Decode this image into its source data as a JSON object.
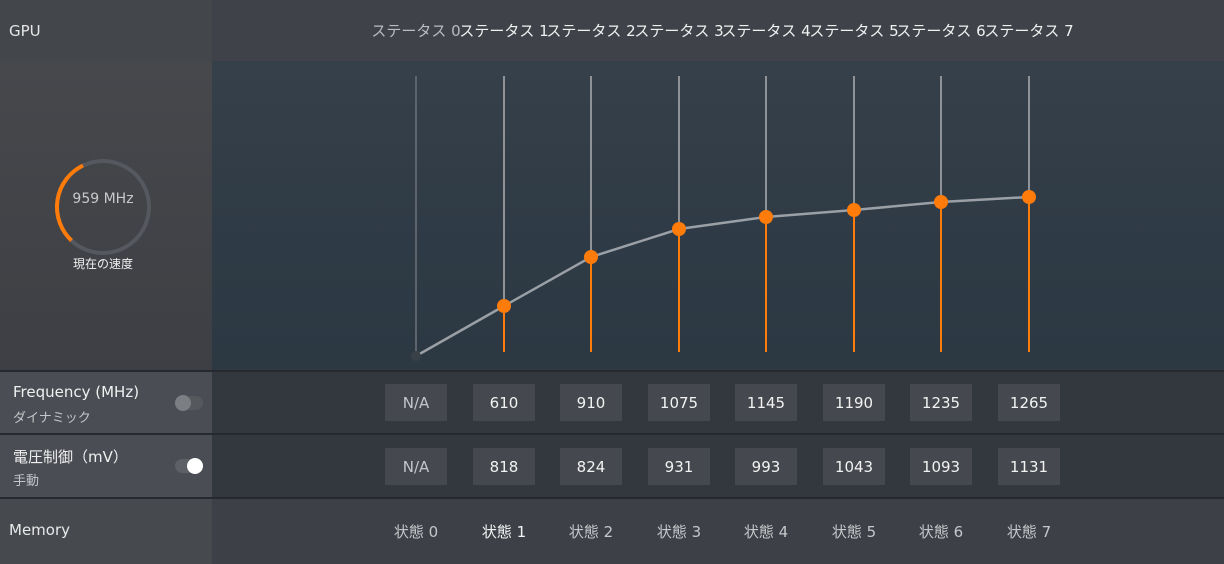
{
  "header": {
    "section": "GPU"
  },
  "states": [
    "ステータス 0",
    "ステータス 1",
    "ステータス 2",
    "ステータス 3",
    "ステータス 4",
    "ステータス 5",
    "ステータス 6",
    "ステータス 7"
  ],
  "gauge": {
    "value_text": "959 MHz",
    "caption": "現在の速度"
  },
  "frequency": {
    "title": "Frequency (MHz)",
    "mode": "ダイナミック",
    "toggle": "off",
    "values": [
      "N/A",
      "610",
      "910",
      "1075",
      "1145",
      "1190",
      "1235",
      "1265"
    ]
  },
  "voltage": {
    "title": "電圧制御（mV）",
    "mode": "手動",
    "toggle": "on",
    "values": [
      "N/A",
      "818",
      "824",
      "931",
      "993",
      "1043",
      "1093",
      "1131"
    ]
  },
  "memory": {
    "section": "Memory",
    "states": [
      "状態 0",
      "状態 1",
      "状態 2",
      "状態 3",
      "状態 4",
      "状態 5",
      "状態 6",
      "状態 7"
    ]
  },
  "colors": {
    "accent": "#ff7b0a",
    "line": "#9aa0a6",
    "track": "#8f9398"
  }
}
